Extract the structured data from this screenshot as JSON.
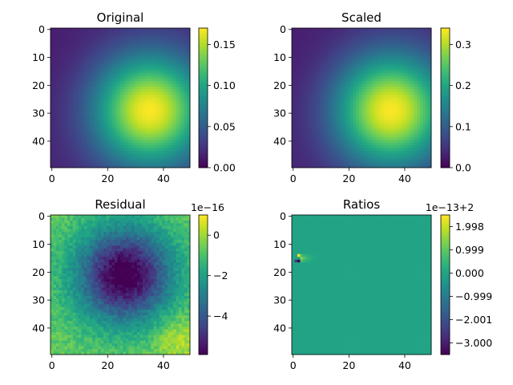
{
  "chart_data": [
    {
      "type": "heatmap",
      "title": "Original",
      "colormap": "viridis",
      "grid": false,
      "shape": [
        50,
        50
      ],
      "x_ticks": [
        0,
        20,
        40
      ],
      "y_ticks": [
        0,
        10,
        20,
        30,
        40
      ],
      "colorbar": {
        "range": [
          0.0,
          0.17
        ],
        "ticks": [
          "0.00",
          "0.05",
          "0.10",
          "0.15"
        ],
        "tick_values": [
          0.0,
          0.05,
          0.1,
          0.15
        ],
        "offset_text": ""
      },
      "field": "gaussian",
      "peak": {
        "col": 35,
        "row": 29,
        "value": 0.17
      },
      "min": {
        "col": 5,
        "row": 13,
        "value": 0.0
      }
    },
    {
      "type": "heatmap",
      "title": "Scaled",
      "colormap": "viridis",
      "grid": false,
      "shape": [
        50,
        50
      ],
      "x_ticks": [
        0,
        20,
        40
      ],
      "y_ticks": [
        0,
        10,
        20,
        30,
        40
      ],
      "colorbar": {
        "range": [
          0.0,
          0.34
        ],
        "ticks": [
          "0.0",
          "0.1",
          "0.2",
          "0.3"
        ],
        "tick_values": [
          0.0,
          0.1,
          0.2,
          0.3
        ],
        "offset_text": ""
      },
      "field": "gaussian",
      "peak": {
        "col": 35,
        "row": 29,
        "value": 0.34
      },
      "min": {
        "col": 5,
        "row": 13,
        "value": 0.0
      }
    },
    {
      "type": "heatmap",
      "title": "Residual",
      "colormap": "viridis",
      "grid": false,
      "shape": [
        50,
        50
      ],
      "x_ticks": [
        0,
        20,
        40
      ],
      "y_ticks": [
        0,
        10,
        20,
        30,
        40
      ],
      "colorbar": {
        "range": [
          -5.9,
          1.0
        ],
        "ticks": [
          "0",
          "−2",
          "−4"
        ],
        "tick_values": [
          0,
          -2,
          -4
        ],
        "offset_text": "1e−16"
      },
      "field": "residual",
      "trough": {
        "col": 26,
        "row": 21,
        "value": -5.9
      }
    },
    {
      "type": "heatmap",
      "title": "Ratios",
      "colormap": "viridis",
      "grid": false,
      "shape": [
        50,
        50
      ],
      "x_ticks": [
        0,
        20,
        40
      ],
      "y_ticks": [
        0,
        10,
        20,
        30,
        40
      ],
      "colorbar": {
        "range": [
          -3.5,
          2.5
        ],
        "ticks": [
          "1.998",
          "0.999",
          "0.000",
          "−0.999",
          "−2.001",
          "−3.000"
        ],
        "tick_values": [
          1.998,
          0.999,
          0.0,
          -0.999,
          -2.001,
          -3.0
        ],
        "offset_text": "1e−13+2"
      },
      "field": "ratios",
      "background_value": 0.0,
      "artifact": {
        "col": 2,
        "row": 15,
        "high_value": 2.5,
        "low_value": -3.5
      }
    }
  ]
}
